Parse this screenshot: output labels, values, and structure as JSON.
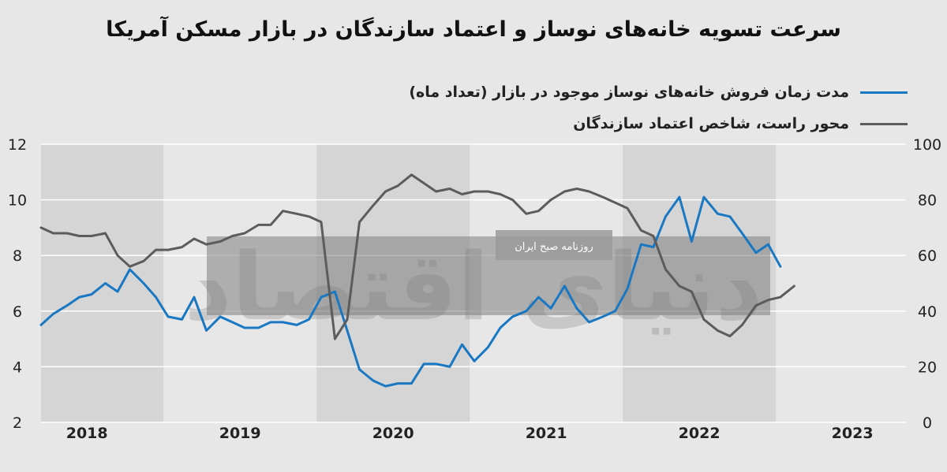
{
  "colors": {
    "sales_time": "#1a78c2",
    "builder_confidence": "#5c5c5c",
    "background": "#e7e7e7",
    "band": "#d5d5d5",
    "grid": "#ffffff",
    "watermark": "#808080"
  },
  "watermark": {
    "logo_text": "دنیای اقتصاد",
    "tag_text": "روزنامه صبح ایران"
  },
  "chart_data": {
    "type": "line",
    "title": "سرعت تسویه خانه‌های نوساز و اعتماد سازندگان در بازار مسکن آمریکا",
    "x_tick_labels": [
      "2018",
      "2019",
      "2020",
      "2021",
      "2022",
      "2023"
    ],
    "x_range": [
      2017.7,
      2023.35
    ],
    "y_left": {
      "ticks": [
        "2",
        "4",
        "6",
        "8",
        "10",
        "12"
      ],
      "range": [
        2,
        12
      ]
    },
    "y_right": {
      "ticks": [
        "0",
        "20",
        "40",
        "60",
        "80",
        "100"
      ],
      "range": [
        0,
        100
      ]
    },
    "grid": true,
    "legend_placement": "top-right",
    "series": [
      {
        "name": "مدت زمان فروش خانه‌های نوساز موجود در بازار (تعداد ماه)",
        "axis": "left",
        "color": "#1a78c2",
        "x": [
          2017.7,
          2017.78,
          2017.87,
          2017.95,
          2018.03,
          2018.12,
          2018.2,
          2018.28,
          2018.37,
          2018.45,
          2018.53,
          2018.62,
          2018.7,
          2018.78,
          2018.87,
          2018.95,
          2019.03,
          2019.12,
          2019.2,
          2019.28,
          2019.37,
          2019.45,
          2019.53,
          2019.62,
          2019.7,
          2019.78,
          2019.87,
          2019.95,
          2020.03,
          2020.12,
          2020.2,
          2020.28,
          2020.37,
          2020.45,
          2020.53,
          2020.62,
          2020.7,
          2020.78,
          2020.87,
          2020.95,
          2021.03,
          2021.12,
          2021.2,
          2021.28,
          2021.37,
          2021.45,
          2021.53,
          2021.62,
          2021.7,
          2021.78,
          2021.87,
          2021.95,
          2022.03,
          2022.12,
          2022.2,
          2022.28,
          2022.37,
          2022.45,
          2022.53,
          2022.62,
          2022.7,
          2022.78
        ],
        "values": [
          5.5,
          5.9,
          6.2,
          6.5,
          6.6,
          7.0,
          6.7,
          7.5,
          7.0,
          6.5,
          5.8,
          5.7,
          6.5,
          5.3,
          5.8,
          5.6,
          5.4,
          5.4,
          5.6,
          5.6,
          5.5,
          5.7,
          6.5,
          6.7,
          5.3,
          3.9,
          3.5,
          3.3,
          3.4,
          3.4,
          4.1,
          4.1,
          4.0,
          4.8,
          4.2,
          4.7,
          5.4,
          5.8,
          6.0,
          6.5,
          6.1,
          6.9,
          6.1,
          5.6,
          5.8,
          6.0,
          6.8,
          8.4,
          8.3,
          9.4,
          10.1,
          8.5,
          10.1,
          9.5,
          9.4,
          8.8,
          8.1,
          8.4,
          7.6,
          null,
          null,
          null
        ]
      },
      {
        "name": "محور راست، شاخص اعتماد سازندگان",
        "axis": "right",
        "color": "#5c5c5c",
        "x": [
          2017.7,
          2017.78,
          2017.87,
          2017.95,
          2018.03,
          2018.12,
          2018.2,
          2018.28,
          2018.37,
          2018.45,
          2018.53,
          2018.62,
          2018.7,
          2018.78,
          2018.87,
          2018.95,
          2019.03,
          2019.12,
          2019.2,
          2019.28,
          2019.37,
          2019.45,
          2019.53,
          2019.62,
          2019.7,
          2019.78,
          2019.87,
          2019.95,
          2020.03,
          2020.12,
          2020.2,
          2020.28,
          2020.37,
          2020.45,
          2020.53,
          2020.62,
          2020.7,
          2020.78,
          2020.87,
          2020.95,
          2021.03,
          2021.12,
          2021.2,
          2021.28,
          2021.37,
          2021.45,
          2021.53,
          2021.62,
          2021.7,
          2021.78,
          2021.87,
          2021.95,
          2022.03,
          2022.12,
          2022.2,
          2022.28,
          2022.37,
          2022.45,
          2022.53,
          2022.62,
          2022.7,
          2022.78,
          2022.87,
          2022.95
        ],
        "values": [
          70,
          68,
          68,
          67,
          67,
          68,
          60,
          56,
          58,
          62,
          62,
          63,
          66,
          64,
          65,
          67,
          68,
          71,
          71,
          76,
          75,
          74,
          72,
          30,
          37,
          72,
          78,
          83,
          85,
          89,
          86,
          83,
          84,
          82,
          83,
          83,
          82,
          80,
          75,
          76,
          80,
          83,
          84,
          83,
          81,
          79,
          77,
          69,
          67,
          55,
          49,
          47,
          37,
          33,
          31,
          35,
          42,
          44,
          45,
          49,
          null,
          null,
          null,
          null
        ]
      }
    ]
  }
}
